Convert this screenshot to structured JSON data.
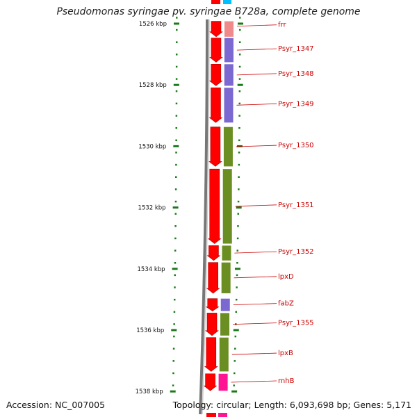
{
  "title": "Pseudomonas syringae pv. syringae B728a, complete genome",
  "footer": {
    "accession": "Accession: NC_007005",
    "summary": "Topology: circular; Length: 6,093,698 bp; Genes: 5,171"
  },
  "colors": {
    "backbone": "#777777",
    "cds_strand": "#ff0000",
    "tick": "#1a7a1a",
    "label_line": "#cc0000",
    "cog_colors": [
      "#f08a8a",
      "#7b68d0",
      "#6b8e23",
      "#ff1493",
      "#00bfff"
    ]
  },
  "scale": {
    "unit": "kbp",
    "major_ticks": [
      "1526 kbp",
      "1528 kbp",
      "1530 kbp",
      "1532 kbp",
      "1534 kbp",
      "1536 kbp",
      "1538 kbp"
    ]
  },
  "genes": [
    {
      "label": "frr",
      "start_kbp": 1525.9,
      "end_kbp": 1526.45,
      "cog_color": "#f08a8a"
    },
    {
      "label": "Psyr_1347",
      "start_kbp": 1526.45,
      "end_kbp": 1527.28,
      "cog_color": "#7b68d0"
    },
    {
      "label": "Psyr_1348",
      "start_kbp": 1527.3,
      "end_kbp": 1528.05,
      "cog_color": "#7b68d0"
    },
    {
      "label": "Psyr_1349",
      "start_kbp": 1528.07,
      "end_kbp": 1529.25,
      "cog_color": "#7b68d0"
    },
    {
      "label": "Psyr_1350",
      "start_kbp": 1529.35,
      "end_kbp": 1530.68,
      "cog_color": "#6b8e23"
    },
    {
      "label": "Psyr_1351",
      "start_kbp": 1530.72,
      "end_kbp": 1533.2,
      "cog_color": "#6b8e23"
    },
    {
      "label": "Psyr_1352",
      "start_kbp": 1533.22,
      "end_kbp": 1533.75,
      "cog_color": "#6b8e23"
    },
    {
      "label": "lpxD",
      "start_kbp": 1533.77,
      "end_kbp": 1534.82,
      "cog_color": "#6b8e23"
    },
    {
      "label": "fabZ",
      "start_kbp": 1534.95,
      "end_kbp": 1535.4,
      "cog_color": "#7b68d0"
    },
    {
      "label": "Psyr_1355",
      "start_kbp": 1535.42,
      "end_kbp": 1536.2,
      "cog_color": "#6b8e23"
    },
    {
      "label": "lpxB",
      "start_kbp": 1536.22,
      "end_kbp": 1537.37,
      "cog_color": "#6b8e23"
    },
    {
      "label": "rnhB",
      "start_kbp": 1537.4,
      "end_kbp": 1538.0,
      "cog_color": "#ff1493"
    }
  ]
}
